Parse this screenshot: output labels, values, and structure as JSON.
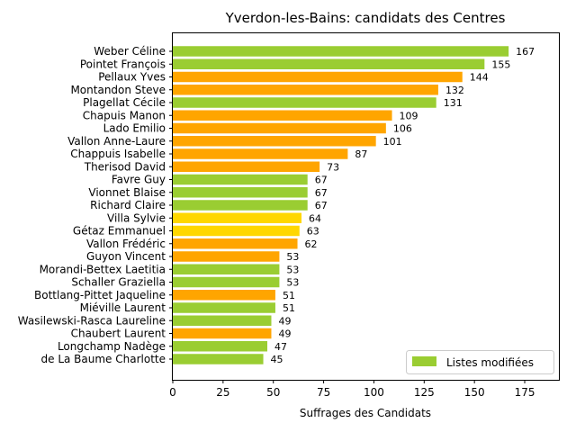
{
  "chart_data": {
    "type": "bar",
    "orientation": "horizontal",
    "title": "Yverdon-les-Bains: candidats des Centres",
    "xlabel": "Suffrages des Candidats",
    "ylabel": "",
    "xlim": [
      0,
      192
    ],
    "xticks": [
      0,
      25,
      50,
      75,
      100,
      125,
      150,
      175
    ],
    "grid": false,
    "legend": {
      "position": "lower-right",
      "label": "Listes modifiées",
      "color": "#9ACD32"
    },
    "colors": {
      "green": "#9ACD32",
      "orange": "#FFA500",
      "gold": "#FFD700"
    },
    "categories": [
      "Weber Céline",
      "Pointet François",
      "Pellaux Yves",
      "Montandon Steve",
      "Plagellat Cécile",
      "Chapuis Manon",
      "Lado Emilio",
      "Vallon Anne-Laure",
      "Chappuis Isabelle",
      "Therisod David",
      "Favre Guy",
      "Vionnet Blaise",
      "Richard Claire",
      "Villa Sylvie",
      "Gétaz Emmanuel",
      "Vallon Frédéric",
      "Guyon Vincent",
      "Morandi-Bettex Laetitia",
      "Schaller Graziella",
      "Bottlang-Pittet Jaqueline",
      "Miéville Laurent",
      "Wasilewski-Rasca Laureline",
      "Chaubert Laurent",
      "Longchamp Nadège",
      "de La Baume Charlotte"
    ],
    "values": [
      167,
      155,
      144,
      132,
      131,
      109,
      106,
      101,
      87,
      73,
      67,
      67,
      67,
      64,
      63,
      62,
      53,
      53,
      53,
      51,
      51,
      49,
      49,
      47,
      45
    ],
    "bar_colors": [
      "green",
      "green",
      "orange",
      "orange",
      "green",
      "orange",
      "orange",
      "orange",
      "orange",
      "orange",
      "green",
      "green",
      "green",
      "gold",
      "gold",
      "orange",
      "orange",
      "green",
      "green",
      "orange",
      "green",
      "green",
      "orange",
      "green",
      "green"
    ]
  }
}
